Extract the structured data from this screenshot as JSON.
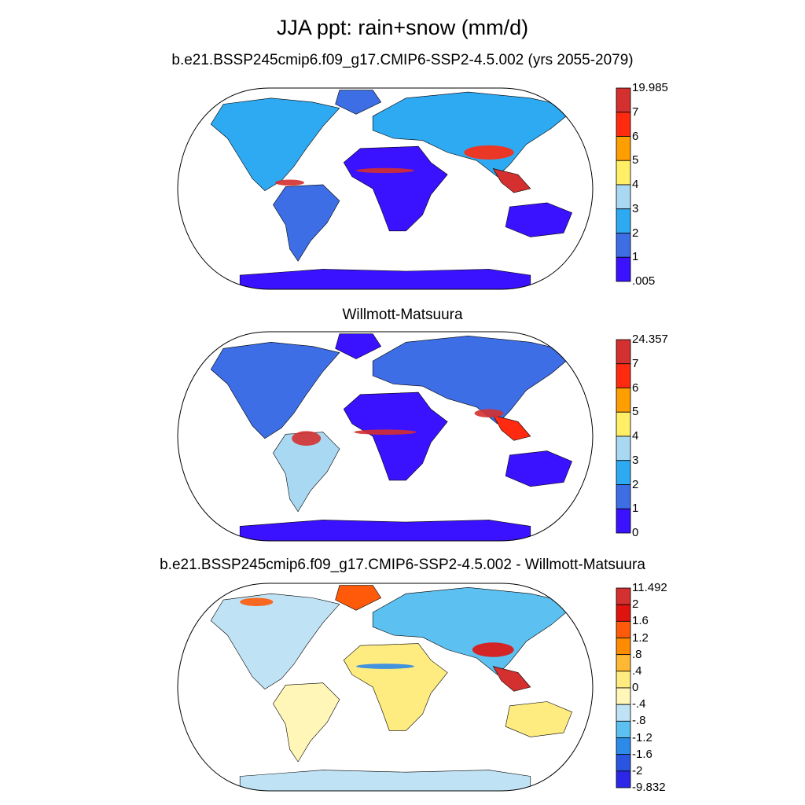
{
  "main_title": "JJA ppt: rain+snow (mm/d)",
  "chart_data": [
    {
      "type": "heatmap",
      "title": "b.e21.BSSP245cmip6.f09_g17.CMIP6-SSP2-4.5.002 (yrs 2055-2079)",
      "projection": "Robinson",
      "colorbar_labels": [
        "19.985",
        "7",
        "6",
        "5",
        "4",
        "3",
        "2",
        "1",
        ".005"
      ],
      "colorbar_colors": [
        "#d3302f",
        "#ff2a0f",
        "#ff9e00",
        "#ffee66",
        "#a9d9f2",
        "#2eaaf2",
        "#3d6ee6",
        "#3b12ff"
      ]
    },
    {
      "type": "heatmap",
      "title": "Willmott-Matsuura",
      "projection": "Robinson",
      "colorbar_labels": [
        "24.357",
        "7",
        "6",
        "5",
        "4",
        "3",
        "2",
        "1",
        "0"
      ],
      "colorbar_colors": [
        "#d3302f",
        "#ff2a0f",
        "#ff9e00",
        "#ffee66",
        "#a9d9f2",
        "#2eaaf2",
        "#3d6ee6",
        "#3b12ff"
      ]
    },
    {
      "type": "heatmap",
      "title": "b.e21.BSSP245cmip6.f09_g17.CMIP6-SSP2-4.5.002 - Willmott-Matsuura",
      "projection": "Robinson",
      "colorbar_labels": [
        "11.492",
        "2",
        "1.6",
        "1.2",
        ".8",
        ".4",
        "0",
        "-.4",
        "-.8",
        "-1.2",
        "-1.6",
        "-2",
        "-9.832"
      ],
      "colorbar_colors": [
        "#d3302f",
        "#e0140f",
        "#ff5a0a",
        "#ff8c00",
        "#ffb833",
        "#ffec80",
        "#fff6b8",
        "#bfe3f5",
        "#5cc0f0",
        "#2c8ae8",
        "#2a55e0",
        "#2c26e8"
      ]
    }
  ]
}
